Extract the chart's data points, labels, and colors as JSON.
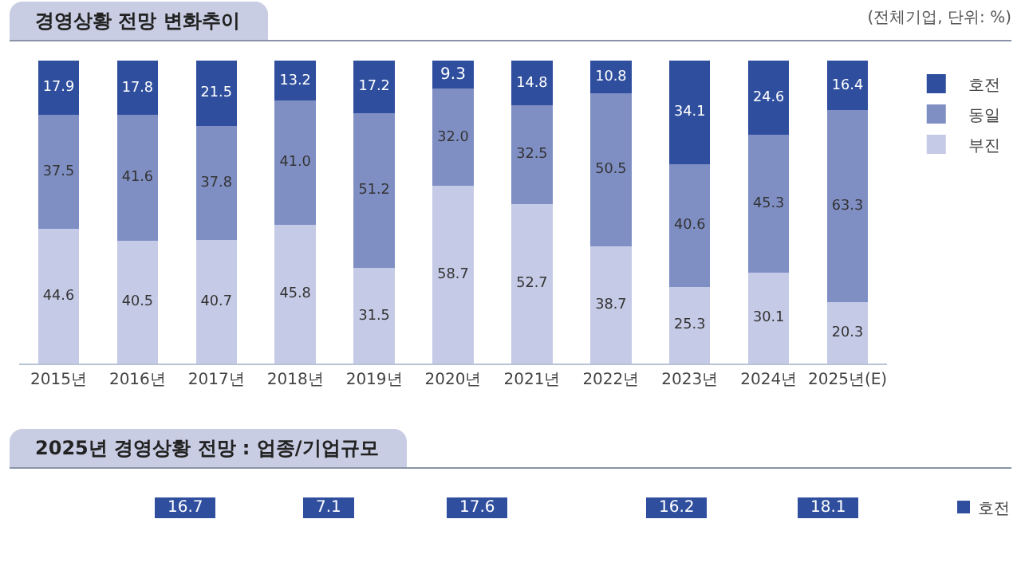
{
  "chart_data": [
    {
      "type": "bar",
      "title": "경영상황 전망 변화추이",
      "annotations": [
        "(전체기업, 단위: %)"
      ],
      "categories": [
        "2015년",
        "2016년",
        "2017년",
        "2018년",
        "2019년",
        "2020년",
        "2021년",
        "2022년",
        "2023년",
        "2024년",
        "2025년(E)"
      ],
      "stacked": true,
      "series": [
        {
          "name": "부진",
          "color": "#c5cae6",
          "values": [
            44.6,
            40.5,
            40.7,
            45.8,
            31.5,
            58.7,
            52.7,
            38.7,
            25.3,
            30.1,
            20.3
          ],
          "value_labels": [
            "44.6",
            "40.5",
            "40.7",
            "45.8",
            "31.5",
            "58.7",
            "52.7",
            "38.7",
            "25.3",
            "30.1",
            "20.3"
          ]
        },
        {
          "name": "동일",
          "color": "#7f8fc4",
          "values": [
            37.5,
            41.6,
            37.8,
            41.0,
            51.2,
            32.0,
            32.5,
            50.5,
            40.6,
            45.3,
            63.3
          ],
          "value_labels": [
            "37.5",
            "41.6",
            "37.8",
            "41.0",
            "51.2",
            "32.0",
            "32.5",
            "50.5",
            "40.6",
            "45.3",
            "63.3"
          ]
        },
        {
          "name": "호전",
          "color": "#2f4f9e",
          "values": [
            17.9,
            17.8,
            21.5,
            13.2,
            17.2,
            9.3,
            14.8,
            10.8,
            34.1,
            24.6,
            16.4
          ],
          "value_labels": [
            "17.9",
            "17.8",
            "21.5",
            "13.2",
            "17.2",
            "9.3",
            "14.8",
            "10.8",
            "34.1",
            "24.6",
            "16.4"
          ]
        }
      ],
      "ylim": [
        0,
        100
      ],
      "tick_labels": "x",
      "legend": "top right"
    },
    {
      "type": "other",
      "title": "2025년 경영상황 전망 : 업종/기업규모",
      "annotations": [
        "16.7",
        "7.1",
        "17.6",
        "16.2",
        "18.1",
        "호전"
      ]
    }
  ]
}
